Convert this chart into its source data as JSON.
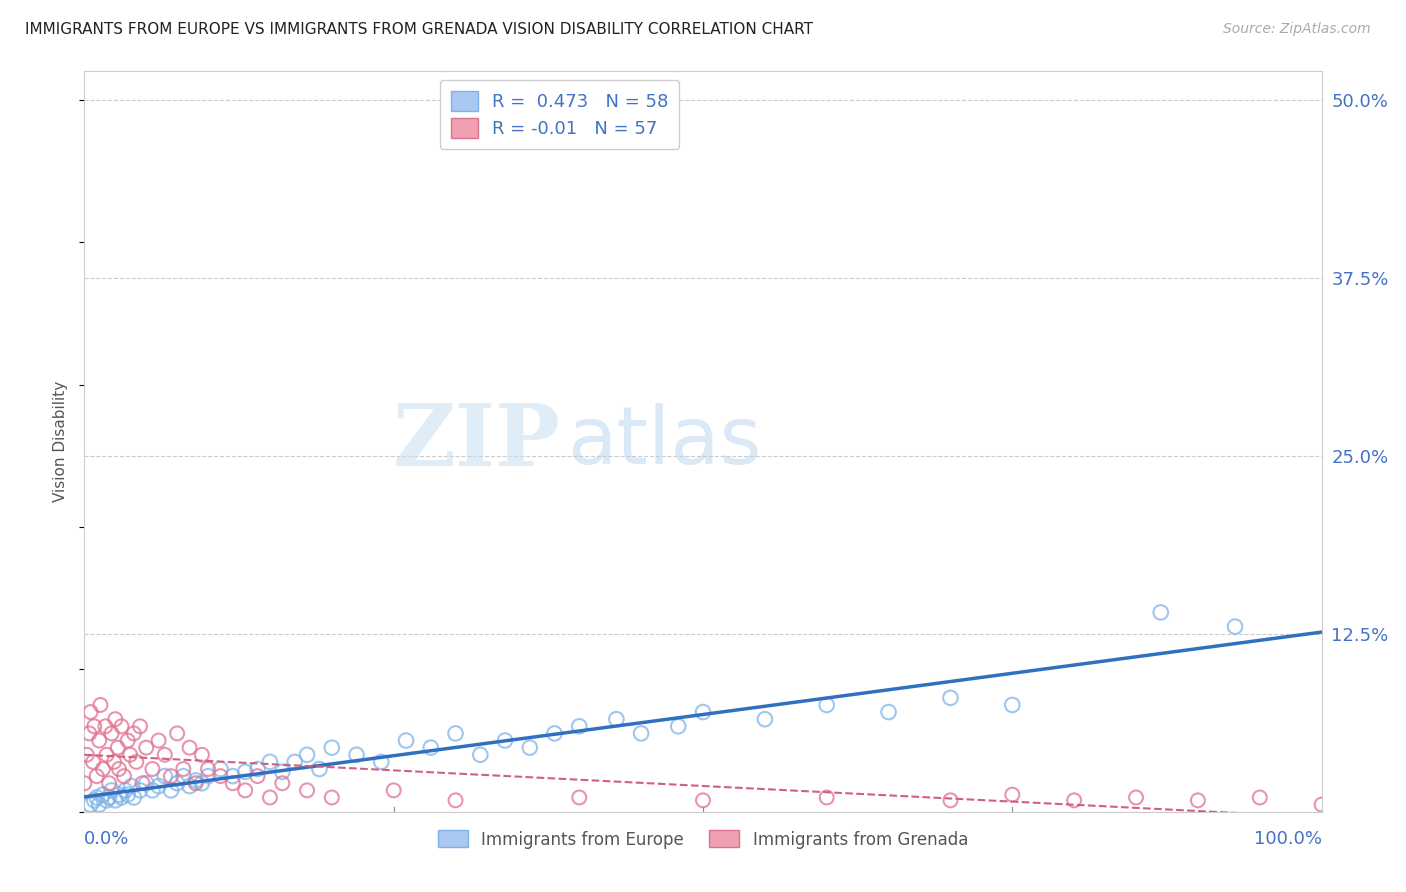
{
  "title": "IMMIGRANTS FROM EUROPE VS IMMIGRANTS FROM GRENADA VISION DISABILITY CORRELATION CHART",
  "source": "Source: ZipAtlas.com",
  "ylabel": "Vision Disability",
  "yticks": [
    0.0,
    0.125,
    0.25,
    0.375,
    0.5
  ],
  "ytick_labels": [
    "",
    "12.5%",
    "25.0%",
    "37.5%",
    "50.0%"
  ],
  "xlim": [
    0.0,
    1.0
  ],
  "ylim": [
    0.0,
    0.52
  ],
  "europe_R": 0.473,
  "europe_N": 58,
  "grenada_R": -0.01,
  "grenada_N": 57,
  "europe_color": "#a8c8f0",
  "europe_edge_color": "#7fb3e8",
  "europe_line_color": "#3070c0",
  "grenada_color": "#f0a0b0",
  "grenada_edge_color": "#e07090",
  "grenada_line_color": "#d06080",
  "watermark_zip": "ZIP",
  "watermark_atlas": "atlas",
  "background_color": "#ffffff",
  "grid_color": "#cccccc",
  "title_color": "#222222",
  "axis_label_color": "#4472c4",
  "legend_label_color": "#333333",
  "europe_x": [
    0.005,
    0.008,
    0.01,
    0.012,
    0.015,
    0.018,
    0.02,
    0.022,
    0.025,
    0.028,
    0.03,
    0.033,
    0.035,
    0.038,
    0.04,
    0.045,
    0.05,
    0.055,
    0.06,
    0.065,
    0.07,
    0.075,
    0.08,
    0.085,
    0.09,
    0.095,
    0.1,
    0.11,
    0.12,
    0.13,
    0.14,
    0.15,
    0.16,
    0.17,
    0.18,
    0.19,
    0.2,
    0.22,
    0.24,
    0.26,
    0.28,
    0.3,
    0.32,
    0.34,
    0.36,
    0.38,
    0.4,
    0.43,
    0.45,
    0.48,
    0.5,
    0.55,
    0.6,
    0.65,
    0.7,
    0.75,
    0.87,
    0.93
  ],
  "europe_y": [
    0.005,
    0.008,
    0.01,
    0.005,
    0.012,
    0.008,
    0.01,
    0.015,
    0.008,
    0.012,
    0.01,
    0.015,
    0.012,
    0.018,
    0.01,
    0.015,
    0.02,
    0.015,
    0.018,
    0.025,
    0.015,
    0.02,
    0.025,
    0.018,
    0.022,
    0.02,
    0.025,
    0.03,
    0.025,
    0.028,
    0.03,
    0.035,
    0.028,
    0.035,
    0.04,
    0.03,
    0.045,
    0.04,
    0.035,
    0.05,
    0.045,
    0.055,
    0.04,
    0.05,
    0.045,
    0.055,
    0.06,
    0.065,
    0.055,
    0.06,
    0.07,
    0.065,
    0.075,
    0.07,
    0.08,
    0.075,
    0.14,
    0.13
  ],
  "grenada_x": [
    0.0,
    0.002,
    0.004,
    0.005,
    0.007,
    0.008,
    0.01,
    0.012,
    0.013,
    0.015,
    0.017,
    0.018,
    0.02,
    0.022,
    0.024,
    0.025,
    0.027,
    0.028,
    0.03,
    0.032,
    0.035,
    0.037,
    0.04,
    0.042,
    0.045,
    0.047,
    0.05,
    0.055,
    0.06,
    0.065,
    0.07,
    0.075,
    0.08,
    0.085,
    0.09,
    0.095,
    0.1,
    0.11,
    0.12,
    0.13,
    0.14,
    0.15,
    0.16,
    0.18,
    0.2,
    0.25,
    0.3,
    0.4,
    0.5,
    0.6,
    0.7,
    0.75,
    0.8,
    0.85,
    0.9,
    0.95,
    1.0
  ],
  "grenada_y": [
    0.02,
    0.04,
    0.055,
    0.07,
    0.035,
    0.06,
    0.025,
    0.05,
    0.075,
    0.03,
    0.06,
    0.04,
    0.02,
    0.055,
    0.035,
    0.065,
    0.045,
    0.03,
    0.06,
    0.025,
    0.05,
    0.04,
    0.055,
    0.035,
    0.06,
    0.02,
    0.045,
    0.03,
    0.05,
    0.04,
    0.025,
    0.055,
    0.03,
    0.045,
    0.02,
    0.04,
    0.03,
    0.025,
    0.02,
    0.015,
    0.025,
    0.01,
    0.02,
    0.015,
    0.01,
    0.015,
    0.008,
    0.01,
    0.008,
    0.01,
    0.008,
    0.012,
    0.008,
    0.01,
    0.008,
    0.01,
    0.005
  ]
}
